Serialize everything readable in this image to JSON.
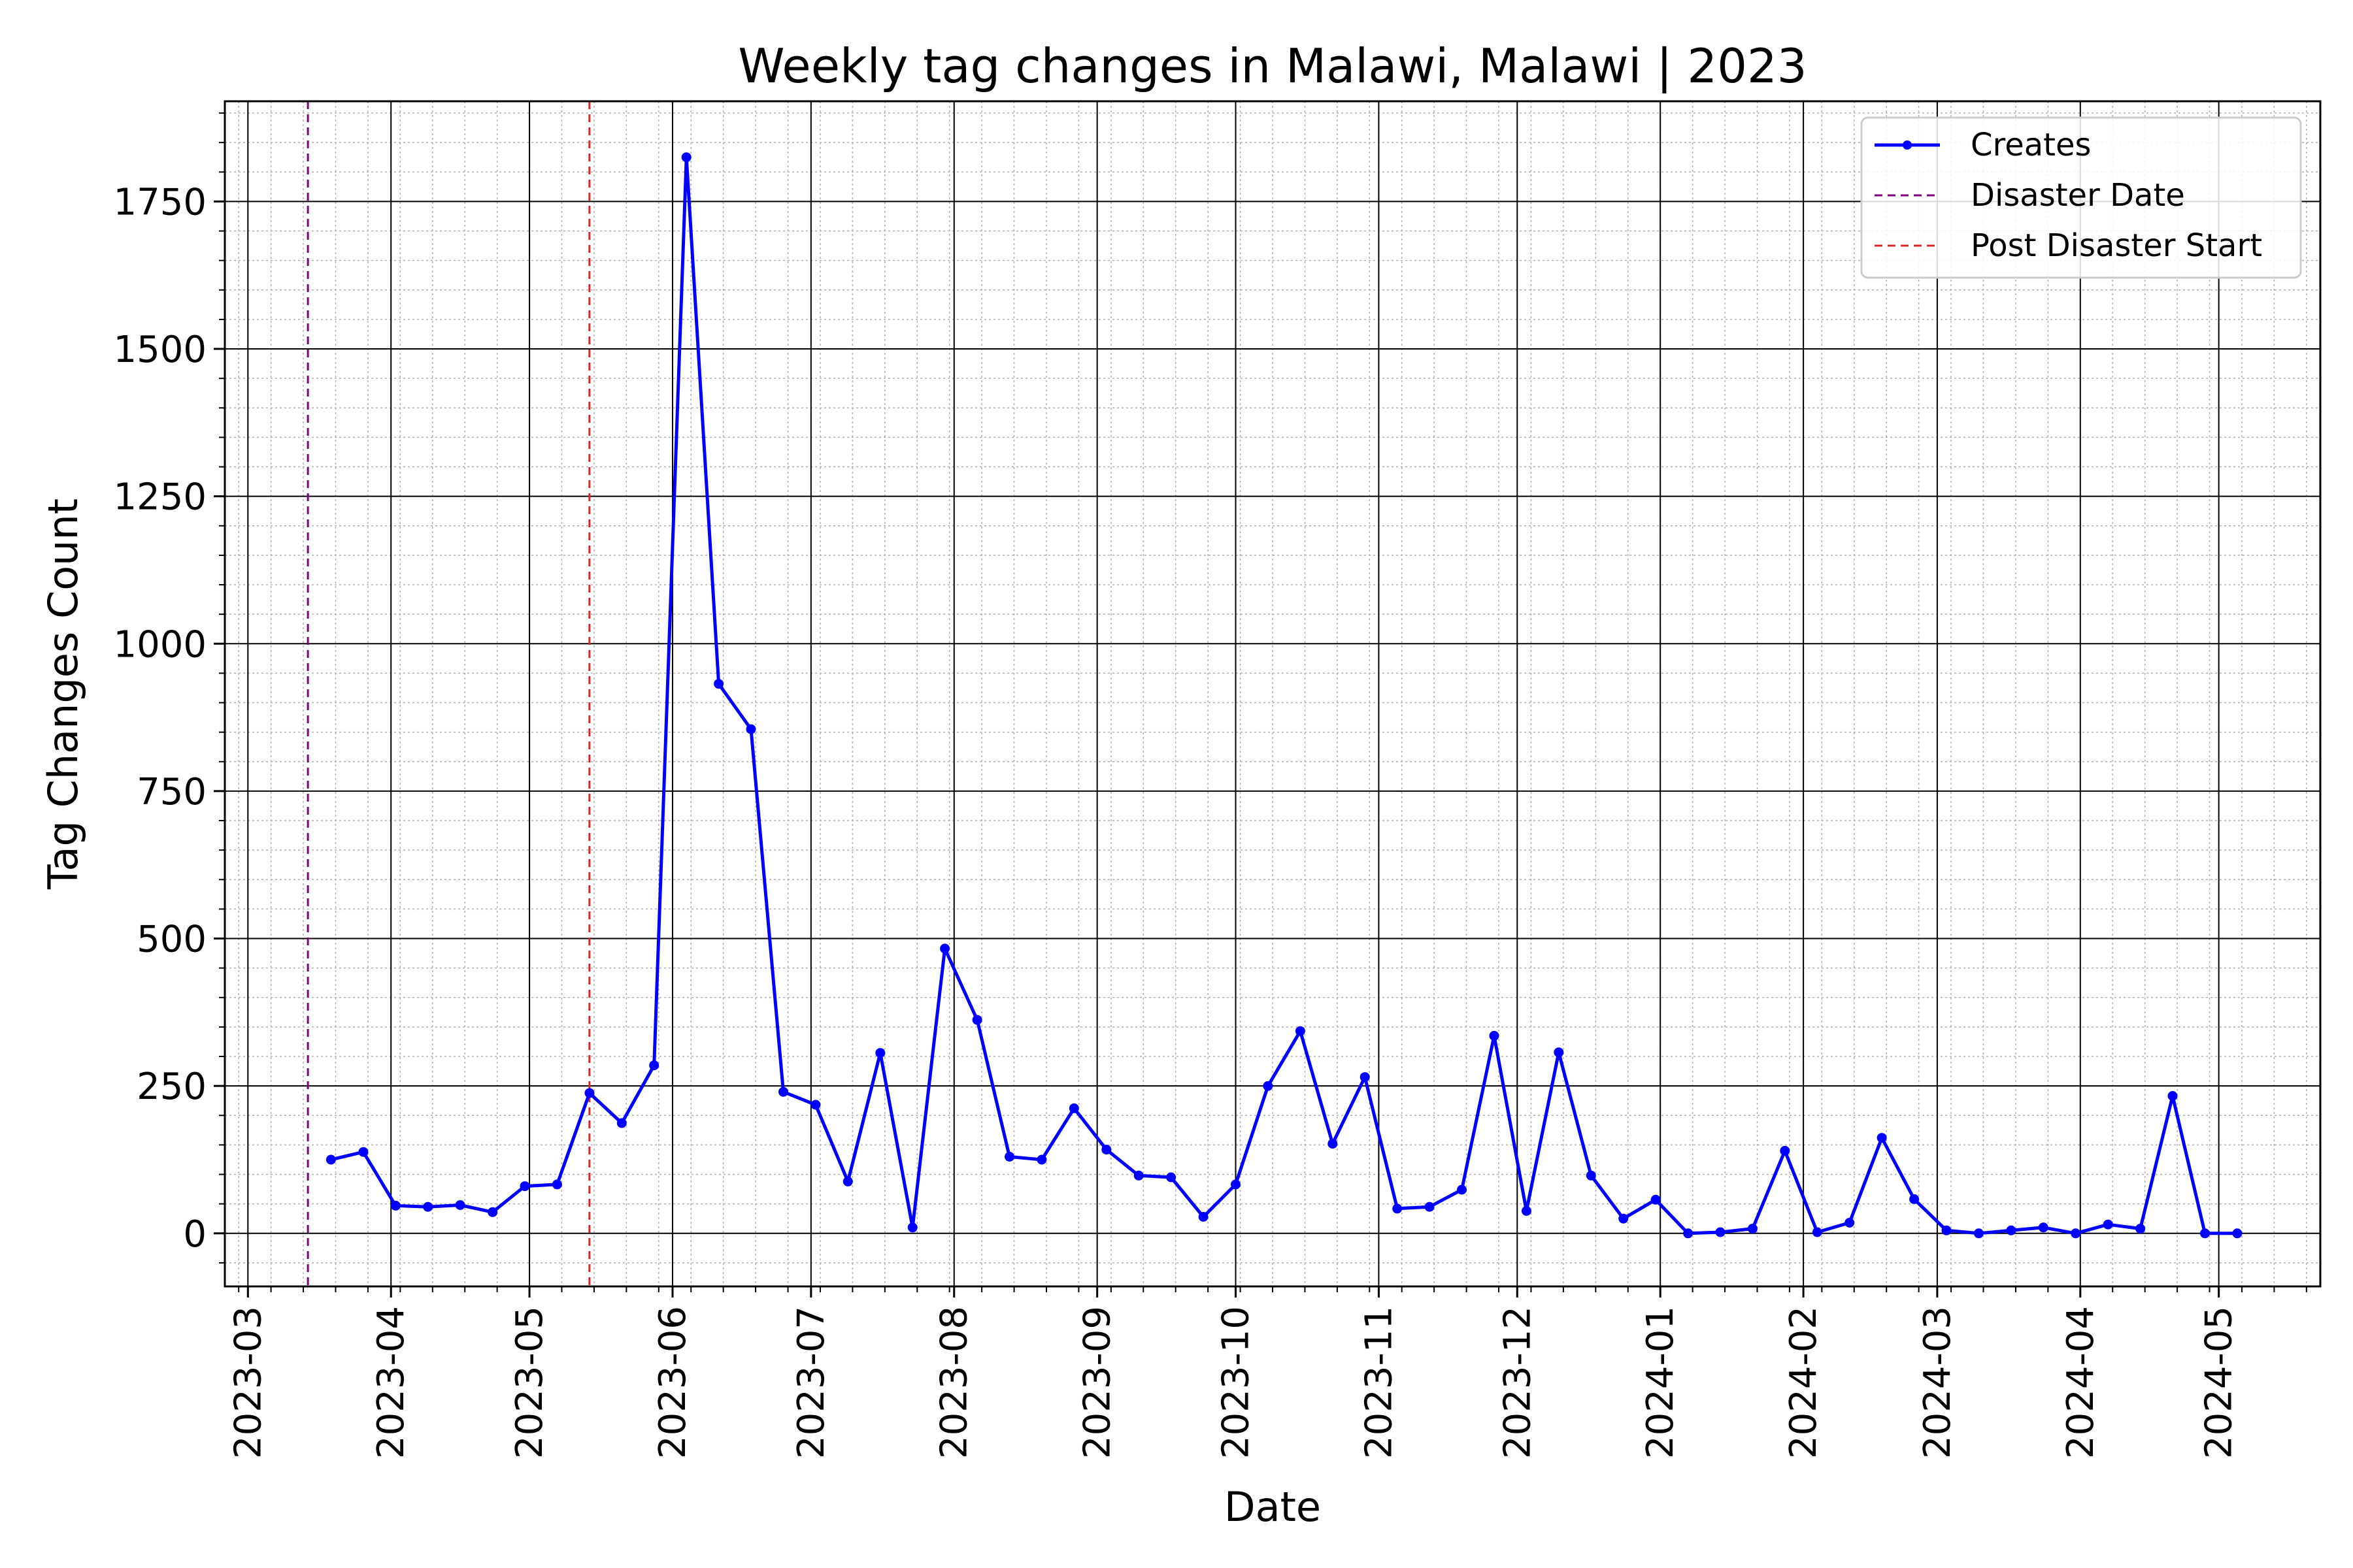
{
  "chart_data": {
    "type": "line",
    "title": "Weekly tag changes in Malawi, Malawi | 2023",
    "xlabel": "Date",
    "ylabel": "Tag Changes Count",
    "xlim": [
      "2023-02-24",
      "2024-05-23"
    ],
    "ylim": [
      -90,
      1920
    ],
    "grid": true,
    "legend_position": "top-right",
    "x_ticks": [
      "2023-03",
      "2023-04",
      "2023-05",
      "2023-06",
      "2023-07",
      "2023-08",
      "2023-09",
      "2023-10",
      "2023-11",
      "2023-12",
      "2024-01",
      "2024-02",
      "2024-03",
      "2024-04",
      "2024-05"
    ],
    "y_ticks": [
      "0",
      "250",
      "500",
      "750",
      "1000",
      "1250",
      "1500",
      "1750"
    ],
    "series": [
      {
        "name": "Creates",
        "color": "#0000ff",
        "style": "line-with-markers",
        "x": [
          "2023-03-19",
          "2023-03-26",
          "2023-04-02",
          "2023-04-09",
          "2023-04-16",
          "2023-04-23",
          "2023-04-30",
          "2023-05-07",
          "2023-05-14",
          "2023-05-21",
          "2023-05-28",
          "2023-06-04",
          "2023-06-11",
          "2023-06-18",
          "2023-06-25",
          "2023-07-02",
          "2023-07-09",
          "2023-07-16",
          "2023-07-23",
          "2023-07-30",
          "2023-08-06",
          "2023-08-13",
          "2023-08-20",
          "2023-08-27",
          "2023-09-03",
          "2023-09-10",
          "2023-09-17",
          "2023-09-24",
          "2023-10-01",
          "2023-10-08",
          "2023-10-15",
          "2023-10-22",
          "2023-10-29",
          "2023-11-05",
          "2023-11-12",
          "2023-11-19",
          "2023-11-26",
          "2023-12-03",
          "2023-12-10",
          "2023-12-17",
          "2023-12-24",
          "2023-12-31",
          "2024-01-07",
          "2024-01-14",
          "2024-01-21",
          "2024-01-28",
          "2024-02-04",
          "2024-02-11",
          "2024-02-18",
          "2024-02-25",
          "2024-03-03",
          "2024-03-10",
          "2024-03-17",
          "2024-03-24",
          "2024-03-31",
          "2024-04-07",
          "2024-04-14",
          "2024-04-21",
          "2024-04-28",
          "2024-05-05"
        ],
        "values": [
          125,
          138,
          47,
          45,
          48,
          36,
          80,
          83,
          238,
          187,
          285,
          1825,
          932,
          855,
          240,
          218,
          88,
          306,
          10,
          483,
          362,
          130,
          125,
          212,
          142,
          98,
          95,
          28,
          83,
          250,
          343,
          152,
          265,
          42,
          45,
          74,
          335,
          38,
          307,
          98,
          25,
          57,
          0,
          2,
          8,
          140,
          2,
          18,
          162,
          58,
          5,
          0,
          5,
          10,
          0,
          15,
          8,
          233,
          0,
          0
        ]
      }
    ],
    "vlines": [
      {
        "name": "Disaster Date",
        "x": "2023-03-14",
        "color": "#800080",
        "style": "dashed"
      },
      {
        "name": "Post Disaster Start",
        "x": "2023-05-14",
        "color": "#d62728",
        "style": "dashed"
      }
    ]
  }
}
